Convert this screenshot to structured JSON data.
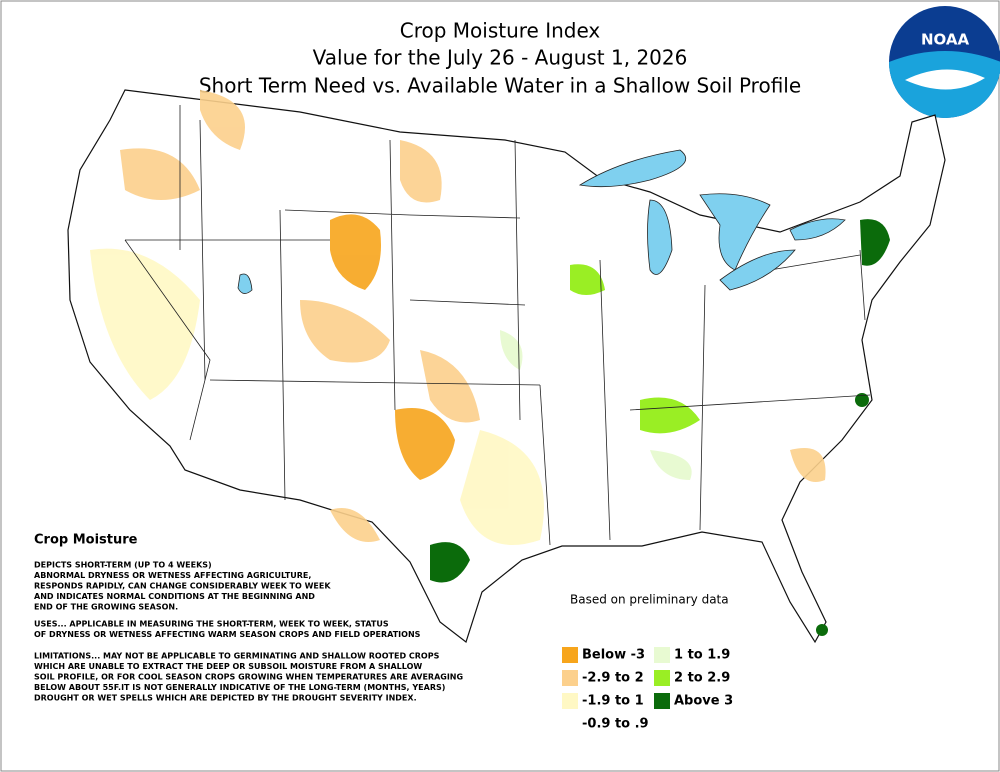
{
  "header": {
    "title_lines": [
      "Crop Moisture Index",
      "Value for the July 26 - August 1, 2026",
      "Short Term Need vs. Available Water in a Shallow Soil Profile"
    ]
  },
  "logo": {
    "text": "NOAA"
  },
  "notes": {
    "heading": "Crop Moisture",
    "paragraphs": [
      [
        "DEPICTS SHORT-TERM (UP TO 4 WEEKS)",
        "ABNORMAL DRYNESS OR WETNESS AFFECTING AGRICULTURE,",
        "RESPONDS RAPIDLY, CAN CHANGE CONSIDERABLY WEEK TO WEEK",
        "AND INDICATES NORMAL CONDITIONS AT THE BEGINNING AND",
        "END OF THE GROWING SEASON."
      ],
      [
        "USES... APPLICABLE IN MEASURING THE SHORT-TERM, WEEK TO WEEK, STATUS",
        "OF DRYNESS OR WETNESS AFFECTING WARM SEASON CROPS AND FIELD OPERATIONS"
      ],
      [
        "LIMITATIONS... MAY NOT BE APPLICABLE TO GERMINATING AND SHALLOW ROOTED CROPS",
        "WHICH ARE UNABLE TO EXTRACT THE DEEP OR SUBSOIL MOISTURE FROM A SHALLOW",
        "SOIL PROFILE, OR FOR COOL SEASON CROPS GROWING WHEN TEMPERATURES ARE AVERAGING",
        "BELOW ABOUT 55F.IT IS NOT GENERALLY INDICATIVE OF THE LONG-TERM (MONTHS, YEARS)",
        "DROUGHT OR WET SPELLS WHICH ARE DEPICTED BY THE DROUGHT SEVERITY INDEX."
      ]
    ]
  },
  "data_note": "Based on preliminary data",
  "legend": [
    {
      "label": "Below -3",
      "color": "#f7a51c"
    },
    {
      "label": "-2.9 to 2",
      "color": "#fcd08c"
    },
    {
      "label": "-1.9 to 1",
      "color": "#fff8c4"
    },
    {
      "label": "-0.9 to .9",
      "color": "#ffffff"
    },
    {
      "label": "1 to 1.9",
      "color": "#e8fad2"
    },
    {
      "label": "2 to 2.9",
      "color": "#9aee24"
    },
    {
      "label": "Above 3",
      "color": "#0b6b0b"
    }
  ]
}
